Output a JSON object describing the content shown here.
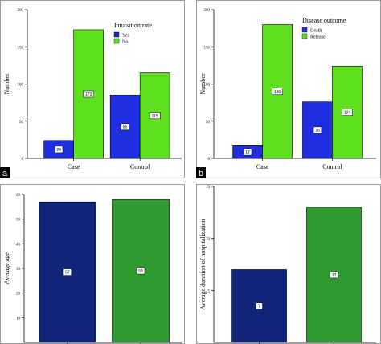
{
  "chart_data": [
    {
      "type": "bar",
      "panel_label": "a",
      "categories": [
        "Case",
        "Control"
      ],
      "ylabel": "Number",
      "ylim": [
        0,
        200
      ],
      "yticks": [
        "0",
        "50",
        "100",
        "150",
        "200"
      ],
      "legend": {
        "title": "Intubation rate",
        "placement": "top-center"
      },
      "series": [
        {
          "name": "Yes",
          "color": "#1f2ee0",
          "values": [
            24,
            85
          ],
          "labels": [
            "24",
            "85"
          ]
        },
        {
          "name": "No",
          "color": "#5fe01f",
          "values": [
            173,
            115
          ],
          "labels": [
            "173",
            "115"
          ]
        }
      ]
    },
    {
      "type": "bar",
      "panel_label": "b",
      "categories": [
        "Case",
        "Control"
      ],
      "ylabel": "Number",
      "ylim": [
        0,
        200
      ],
      "yticks": [
        "0",
        "50",
        "100",
        "150",
        "200"
      ],
      "legend": {
        "title": "Disease outcome",
        "placement": "top-center"
      },
      "series": [
        {
          "name": "Death",
          "color": "#1f2ee0",
          "values": [
            17,
            76
          ],
          "labels": [
            "17",
            "76"
          ]
        },
        {
          "name": "Release",
          "color": "#5fe01f",
          "values": [
            180,
            124
          ],
          "labels": [
            "180",
            "124"
          ]
        }
      ]
    },
    {
      "type": "bar",
      "panel_label": "",
      "categories": [
        "",
        ""
      ],
      "ylabel": "Average age",
      "ylim": [
        0,
        60
      ],
      "yticks": [
        "10",
        "20",
        "30",
        "40",
        "50",
        "60"
      ],
      "bar_colors": [
        "#12237a",
        "#2f9a2f"
      ],
      "values": [
        57,
        58
      ],
      "labels": [
        "57",
        "58"
      ]
    },
    {
      "type": "bar",
      "panel_label": "",
      "categories": [
        "",
        ""
      ],
      "ylabel": "Average duration of hospitalization",
      "ylim": [
        0,
        15
      ],
      "yticks": [
        "5",
        "10",
        "15"
      ],
      "bar_colors": [
        "#12237a",
        "#2f9a2f"
      ],
      "values": [
        7,
        13
      ],
      "labels": [
        "7",
        "13"
      ]
    }
  ]
}
